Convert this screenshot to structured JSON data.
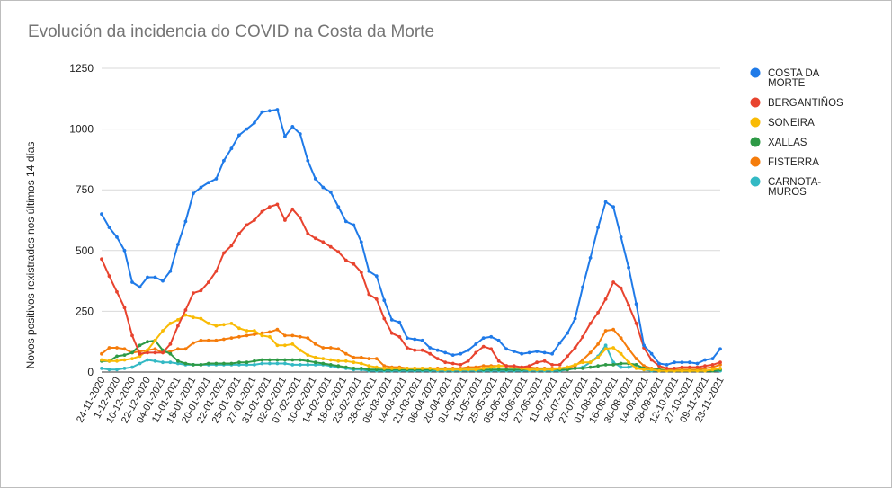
{
  "chart_data": {
    "type": "line",
    "title": "Evolución da incidencia do COVID na Costa da Morte",
    "ylabel": "Novos positivos rexistrados nos últimos 14 días",
    "xlabel": "",
    "ylim": [
      0,
      1250
    ],
    "yticks": [
      "0",
      "250",
      "500",
      "750",
      "1000",
      "1250"
    ],
    "grid": true,
    "legend_position": "right",
    "x_tick_labels": [
      "24-11-2020",
      "1-12-2020",
      "10-12-2020",
      "22-12-2020",
      "04-01-2021",
      "11-01-2021",
      "18-01-2021",
      "20-01-2021",
      "22-01-2021",
      "25-01-2021",
      "27-01-2021",
      "31-01-2021",
      "02-02-2021",
      "07-02-2021",
      "10-02-2021",
      "14-02-2021",
      "18-02-2021",
      "23-02-2021",
      "28-02-2021",
      "09-03-2021",
      "14-03-2021",
      "21-03-2021",
      "06-04-2021",
      "20-04-2021",
      "01-05-2021",
      "11-05-2021",
      "25-05-2021",
      "05-06-2021",
      "15-06-2021",
      "27-06-2021",
      "11-07-2021",
      "20-07-2021",
      "27-07-2021",
      "01-08-2021",
      "16-08-2021",
      "30-08-2021",
      "14-09-2021",
      "28-09-2021",
      "12-10-2021",
      "27-10-2021",
      "09-11-2021",
      "23-11-2021"
    ],
    "series": [
      {
        "name": "COSTA DA MORTE",
        "color": "#1f7ae8",
        "values": [
          650,
          595,
          555,
          500,
          370,
          350,
          390,
          390,
          375,
          415,
          525,
          620,
          735,
          760,
          780,
          795,
          870,
          920,
          975,
          1000,
          1025,
          1070,
          1075,
          1080,
          970,
          1010,
          980,
          870,
          795,
          760,
          740,
          680,
          620,
          605,
          535,
          415,
          395,
          295,
          215,
          205,
          140,
          135,
          130,
          100,
          90,
          80,
          70,
          75,
          90,
          115,
          140,
          145,
          130,
          95,
          85,
          75,
          80,
          85,
          80,
          75,
          120,
          160,
          220,
          350,
          470,
          595,
          700,
          680,
          555,
          430,
          280,
          110,
          75,
          35,
          30,
          40,
          40,
          40,
          35,
          50,
          55,
          95
        ]
      },
      {
        "name": "BERGANTIÑOS",
        "color": "#e8432e",
        "values": [
          465,
          395,
          330,
          265,
          150,
          75,
          80,
          80,
          80,
          115,
          190,
          255,
          325,
          335,
          370,
          415,
          490,
          520,
          570,
          605,
          625,
          660,
          680,
          690,
          625,
          670,
          635,
          570,
          550,
          535,
          515,
          495,
          460,
          445,
          410,
          320,
          300,
          220,
          160,
          145,
          100,
          90,
          90,
          75,
          55,
          40,
          35,
          30,
          45,
          80,
          105,
          95,
          45,
          25,
          25,
          20,
          25,
          40,
          45,
          30,
          30,
          65,
          100,
          145,
          200,
          245,
          300,
          370,
          345,
          275,
          200,
          100,
          50,
          25,
          15,
          15,
          20,
          20,
          20,
          25,
          30,
          40
        ]
      },
      {
        "name": "SONEIRA",
        "color": "#f9bb05",
        "values": [
          50,
          45,
          45,
          50,
          55,
          65,
          90,
          130,
          170,
          200,
          215,
          235,
          225,
          220,
          200,
          190,
          195,
          200,
          180,
          170,
          170,
          150,
          145,
          110,
          110,
          115,
          90,
          70,
          60,
          55,
          50,
          45,
          45,
          40,
          35,
          25,
          20,
          15,
          15,
          15,
          15,
          15,
          15,
          15,
          10,
          10,
          10,
          10,
          10,
          10,
          15,
          20,
          25,
          25,
          20,
          15,
          10,
          10,
          10,
          10,
          15,
          20,
          30,
          40,
          40,
          60,
          95,
          100,
          75,
          40,
          15,
          10,
          10,
          5,
          5,
          5,
          5,
          5,
          5,
          5,
          10,
          15
        ]
      },
      {
        "name": "XALLAS",
        "color": "#2e9a46",
        "values": [
          45,
          45,
          65,
          70,
          80,
          110,
          125,
          130,
          90,
          75,
          45,
          35,
          30,
          30,
          35,
          35,
          35,
          35,
          40,
          40,
          45,
          50,
          50,
          50,
          50,
          50,
          50,
          45,
          40,
          35,
          30,
          25,
          20,
          15,
          15,
          10,
          10,
          10,
          10,
          10,
          10,
          10,
          10,
          10,
          10,
          10,
          10,
          10,
          10,
          10,
          10,
          10,
          10,
          10,
          10,
          10,
          10,
          10,
          10,
          10,
          10,
          10,
          15,
          15,
          20,
          25,
          30,
          30,
          35,
          35,
          30,
          15,
          10,
          10,
          5,
          5,
          5,
          5,
          5,
          5,
          5,
          10
        ]
      },
      {
        "name": "FISTERRA",
        "color": "#f57c0b",
        "values": [
          75,
          100,
          100,
          95,
          80,
          85,
          90,
          95,
          80,
          85,
          95,
          95,
          120,
          130,
          130,
          130,
          135,
          140,
          145,
          150,
          155,
          160,
          165,
          175,
          150,
          150,
          145,
          140,
          115,
          100,
          100,
          95,
          75,
          60,
          60,
          55,
          55,
          25,
          20,
          20,
          15,
          15,
          15,
          15,
          15,
          15,
          15,
          15,
          20,
          20,
          25,
          25,
          25,
          25,
          20,
          20,
          20,
          15,
          15,
          15,
          15,
          20,
          25,
          50,
          80,
          115,
          170,
          175,
          140,
          95,
          55,
          25,
          15,
          10,
          10,
          10,
          10,
          10,
          10,
          15,
          20,
          30
        ]
      },
      {
        "name": "CARNOTA-MUROS",
        "color": "#33b9c4",
        "values": [
          15,
          10,
          10,
          15,
          20,
          35,
          50,
          45,
          40,
          40,
          35,
          30,
          30,
          30,
          30,
          30,
          30,
          30,
          30,
          30,
          30,
          35,
          35,
          35,
          35,
          30,
          30,
          30,
          30,
          30,
          25,
          20,
          15,
          10,
          10,
          5,
          5,
          5,
          5,
          5,
          5,
          5,
          5,
          5,
          5,
          5,
          5,
          5,
          5,
          5,
          5,
          5,
          5,
          5,
          5,
          5,
          5,
          5,
          5,
          5,
          5,
          10,
          15,
          20,
          40,
          65,
          110,
          40,
          20,
          20,
          30,
          10,
          5,
          5,
          5,
          5,
          5,
          5,
          5,
          5,
          5,
          5
        ]
      }
    ]
  }
}
